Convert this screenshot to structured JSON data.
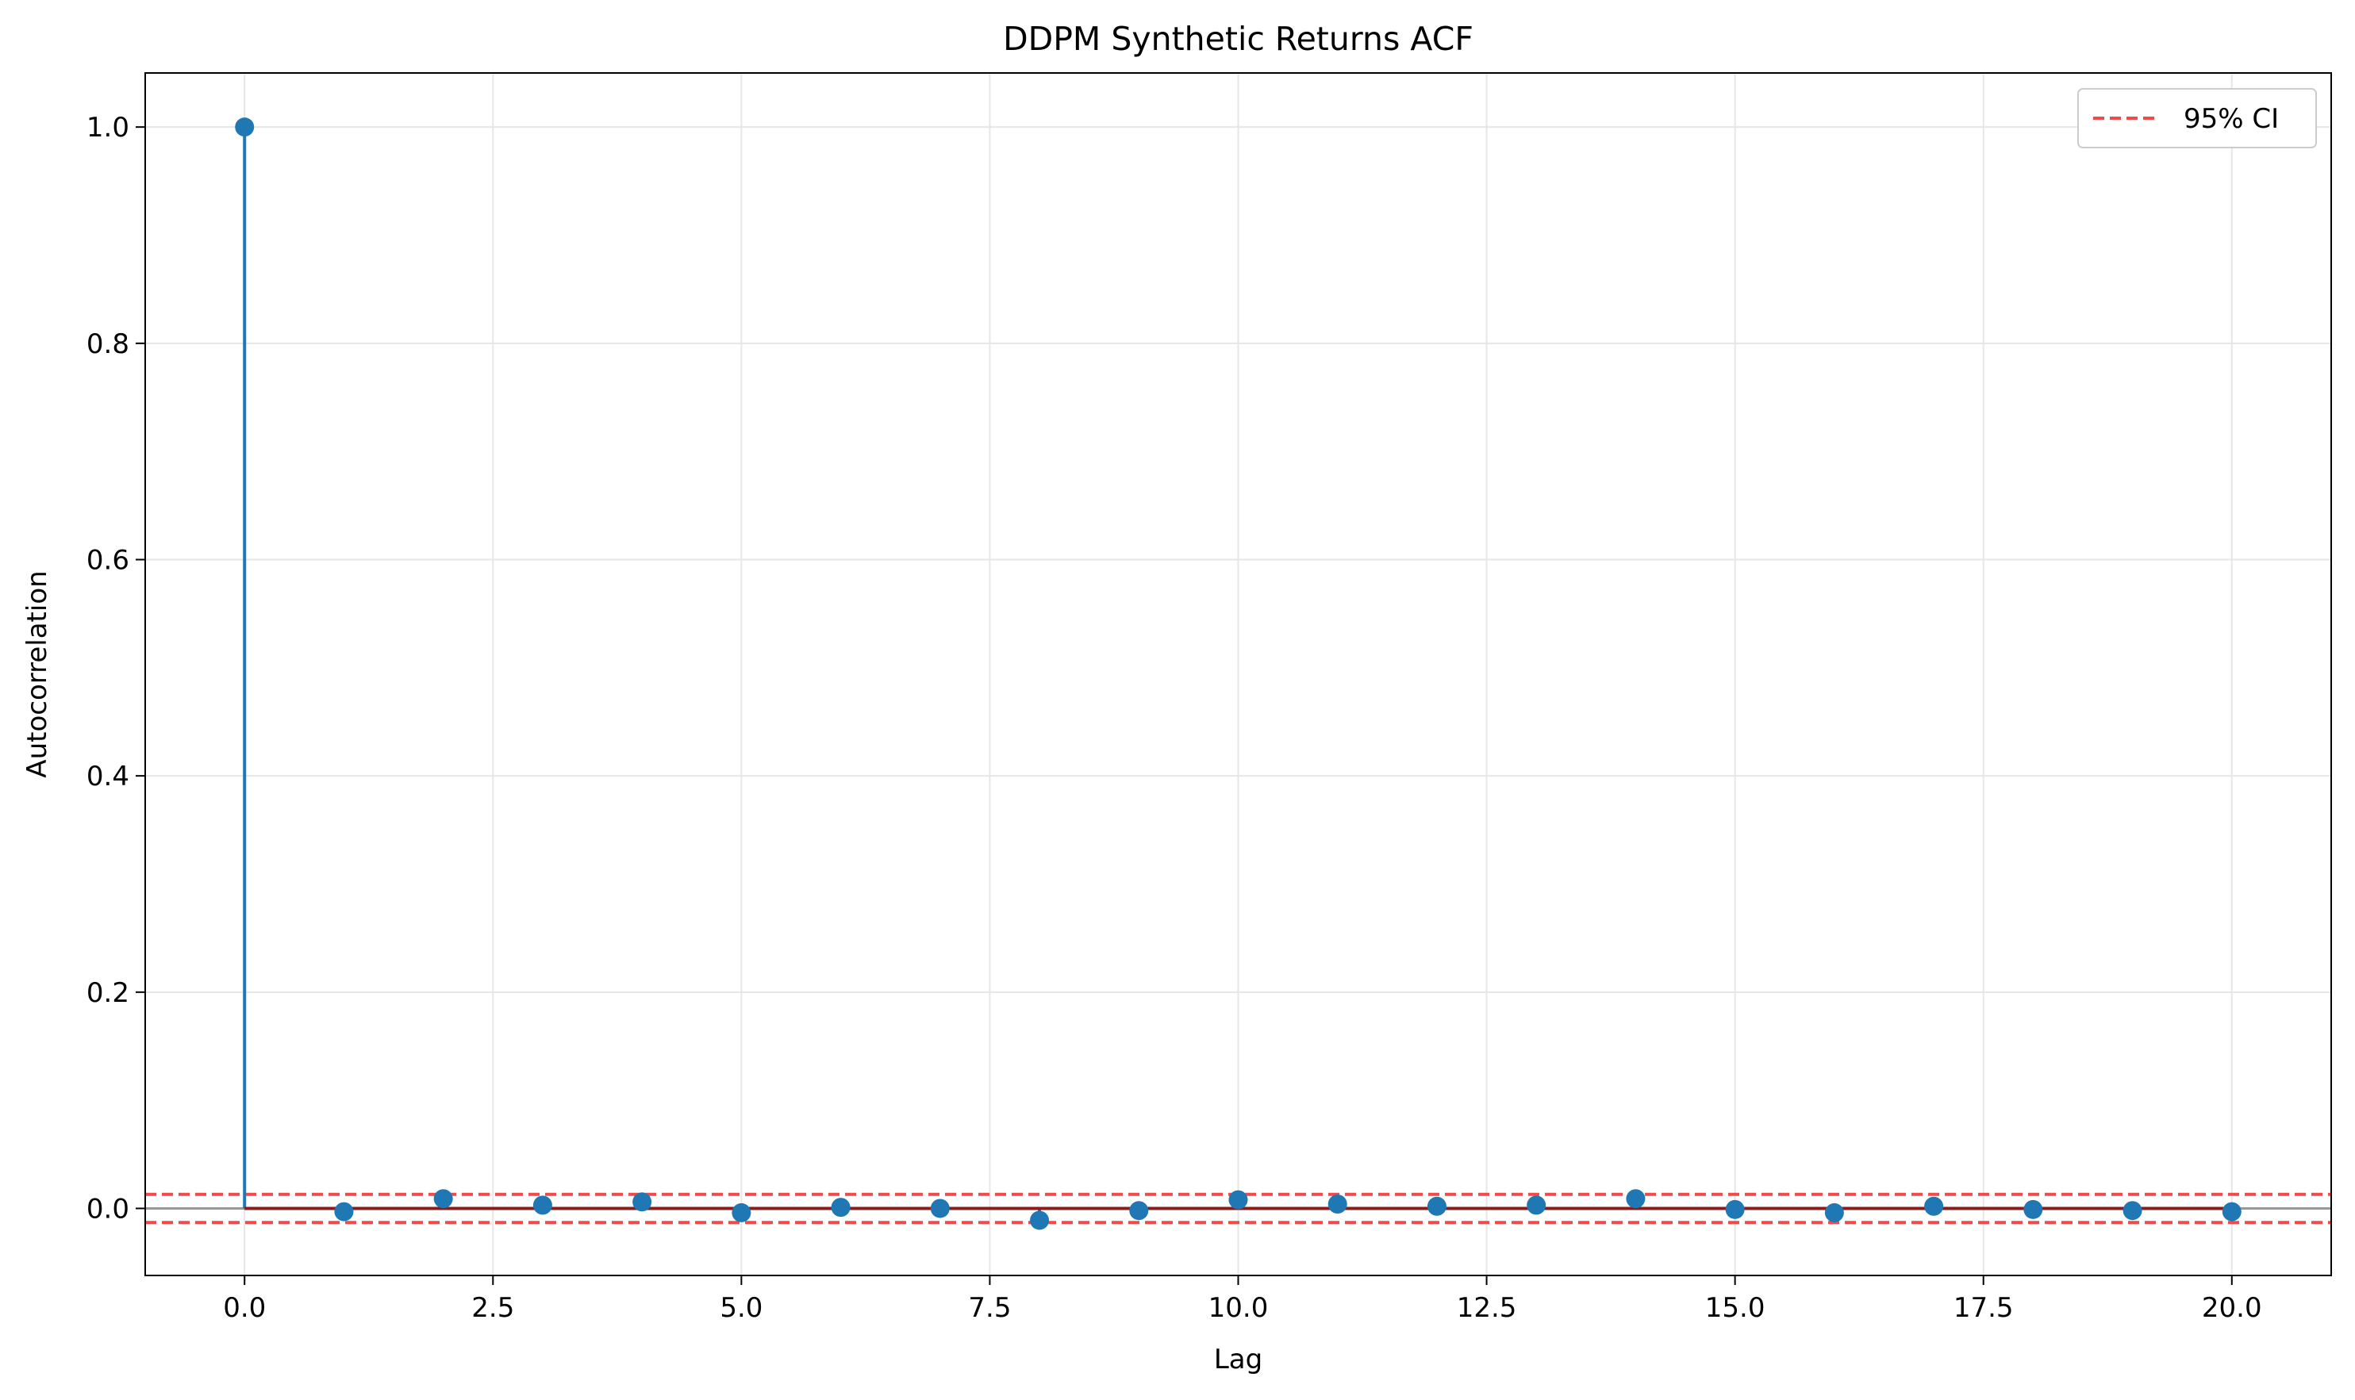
{
  "chart_data": {
    "type": "stem",
    "title": "DDPM Synthetic Returns ACF",
    "xlabel": "Lag",
    "ylabel": "Autocorrelation",
    "xlim": [
      -1,
      21
    ],
    "ylim": [
      -0.062,
      1.05
    ],
    "xticks": [
      0.0,
      2.5,
      5.0,
      7.5,
      10.0,
      12.5,
      15.0,
      17.5,
      20.0
    ],
    "xtick_labels": [
      "0.0",
      "2.5",
      "5.0",
      "7.5",
      "10.0",
      "12.5",
      "15.0",
      "17.5",
      "20.0"
    ],
    "yticks": [
      0.0,
      0.2,
      0.4,
      0.6,
      0.8,
      1.0
    ],
    "ytick_labels": [
      "0.0",
      "0.2",
      "0.4",
      "0.6",
      "0.8",
      "1.0"
    ],
    "grid": true,
    "legend_position": "top-right",
    "series": [
      {
        "x": [
          0,
          1,
          2,
          3,
          4,
          5,
          6,
          7,
          8,
          9,
          10,
          11,
          12,
          13,
          14,
          15,
          16,
          17,
          18,
          19,
          20
        ],
        "values": [
          1.0,
          -0.003,
          0.009,
          0.003,
          0.006,
          -0.004,
          0.001,
          0.0,
          -0.011,
          -0.002,
          0.008,
          0.004,
          0.002,
          0.003,
          0.009,
          -0.001,
          -0.004,
          0.002,
          -0.001,
          -0.002,
          -0.003
        ],
        "color": "#1f77b4"
      }
    ],
    "confidence_interval": {
      "label": "95% CI",
      "upper": 0.013,
      "lower": -0.013,
      "color": "#f04a4a"
    },
    "zero_line_color": "#999999",
    "baseline_color": "#8b1c1c"
  }
}
